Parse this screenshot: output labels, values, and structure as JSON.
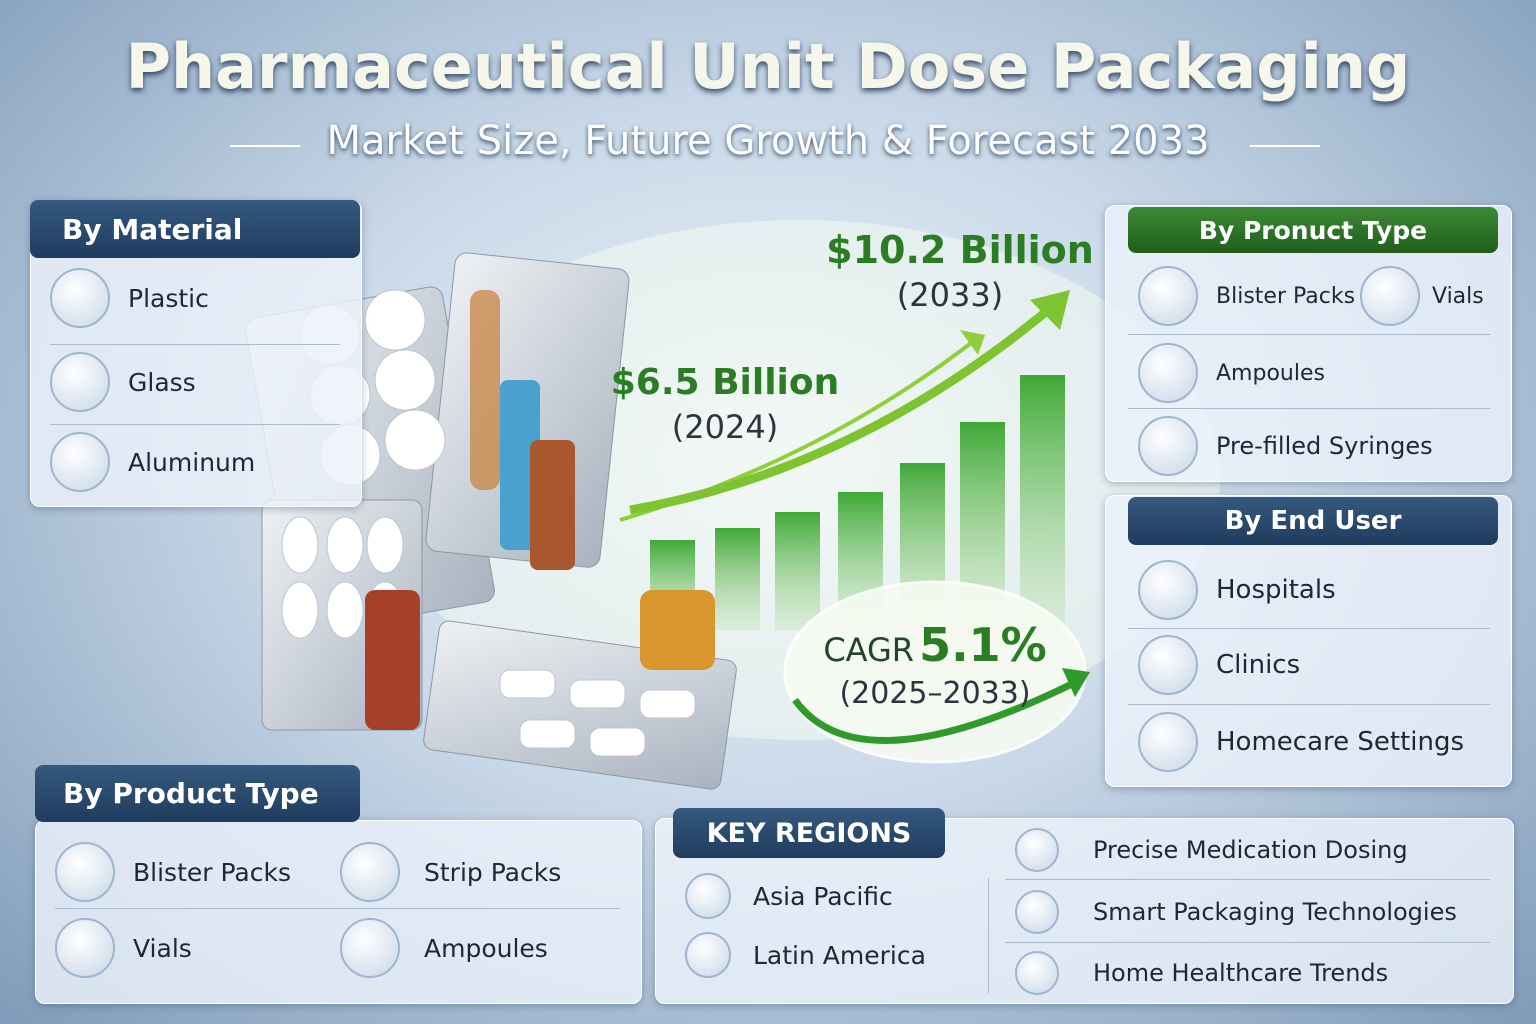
{
  "header": {
    "title": "Pharmaceutical Unit Dose Packaging",
    "subtitle": "Market Size, Future Growth & Forecast 2033"
  },
  "by_material": {
    "title": "By Material",
    "items": [
      "Plastic",
      "Glass",
      "Aluminum"
    ]
  },
  "market": {
    "value_2033": "$10.2 Billion",
    "year_2033": "(2033)",
    "value_2024": "$6.5 Billion",
    "year_2024": "(2024)",
    "cagr_label": "CAGR",
    "cagr_value": "5.1%",
    "cagr_period": "(2025–2033)"
  },
  "product_type_right": {
    "title": "By Pronuct Type",
    "items": [
      "Blister Packs",
      "Vials",
      "Ampoules",
      "Pre-filled Syringes"
    ]
  },
  "end_user": {
    "title": "By End User",
    "items": [
      "Hospitals",
      "Clinics",
      "Homecare Settings"
    ]
  },
  "product_type_bottom": {
    "title": "By Product Type",
    "items": [
      "Blister Packs",
      "Strip Packs",
      "Vials",
      "Ampoules"
    ]
  },
  "key_regions": {
    "title": "KEY REGIONS",
    "items": [
      "Asia Pacific",
      "Latin America"
    ]
  },
  "trends": {
    "items": [
      "Precise Medication Dosing",
      "Smart Packaging Technologies",
      "Home Healthcare Trends"
    ]
  }
}
